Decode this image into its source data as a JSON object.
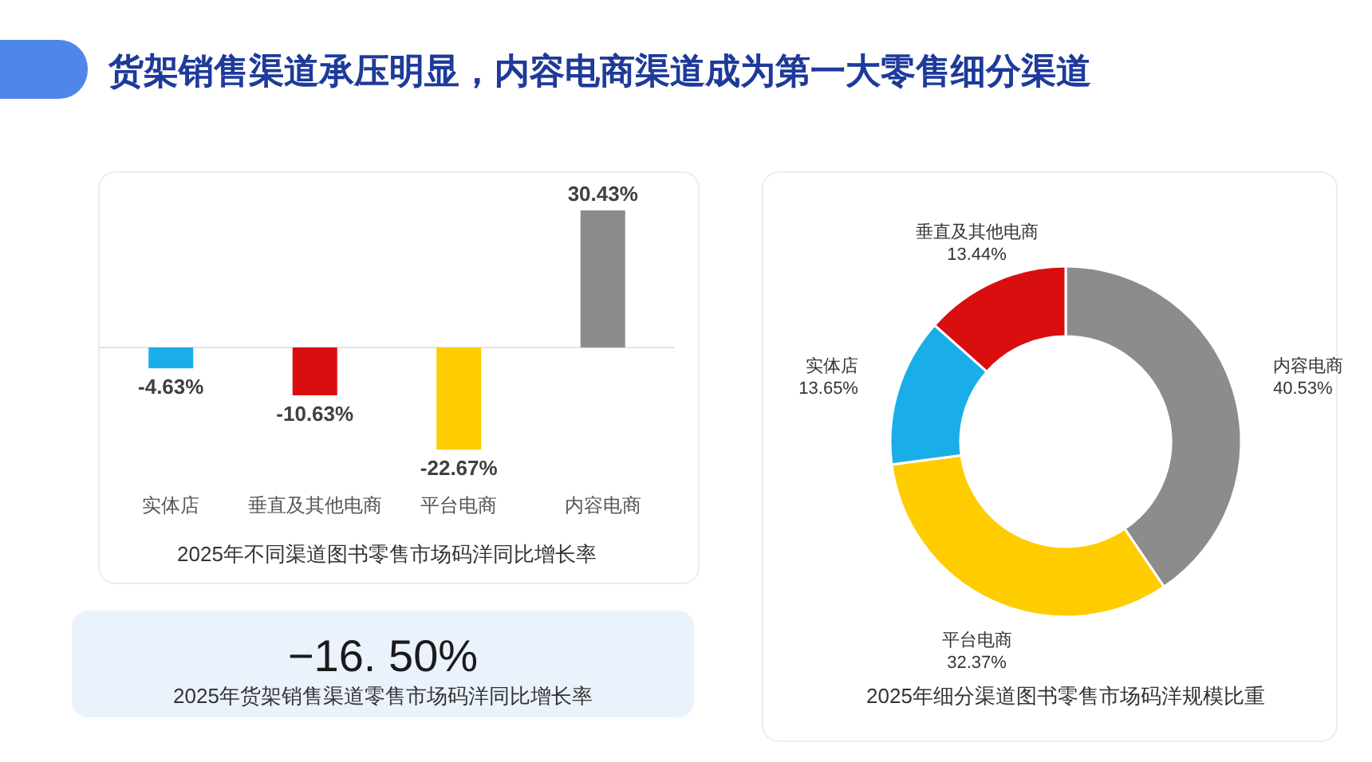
{
  "chart_data": [
    {
      "type": "bar",
      "title": "货架销售渠道承压明显，内容电商渠道成为第一大零售细分渠道",
      "xlabel": "2025年不同渠道图书零售市场码洋同比增长率",
      "categories": [
        "实体店",
        "垂直及其他电商",
        "平台电商",
        "内容电商"
      ],
      "values": [
        -4.63,
        -10.63,
        -22.67,
        30.43
      ],
      "colors": [
        "#1aaee8",
        "#d90f0f",
        "#ffcc00",
        "#8c8c8c"
      ],
      "value_labels": [
        "-4.63%",
        "-10.63%",
        "-22.67%",
        "30.43%"
      ]
    },
    {
      "type": "donut",
      "title": "2025年细分渠道图书零售市场码洋规模比重",
      "categories": [
        "内容电商",
        "平台电商",
        "实体店",
        "垂直及其他电商"
      ],
      "values": [
        40.53,
        32.37,
        13.65,
        13.44
      ],
      "colors": [
        "#8c8c8c",
        "#ffcc00",
        "#1aaee8",
        "#d90f0f"
      ],
      "value_labels": [
        "40.53%",
        "32.37%",
        "13.65%",
        "13.44%"
      ]
    },
    {
      "type": "other",
      "title": "−16. 50%",
      "subtitle": "2025年货架销售渠道零售市场码洋同比增长率"
    }
  ]
}
